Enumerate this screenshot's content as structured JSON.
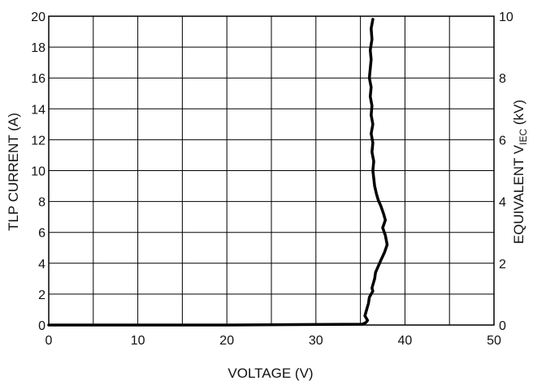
{
  "chart_data": {
    "type": "line",
    "xlabel": "VOLTAGE (V)",
    "ylabel": "TLP CURRENT (A)",
    "y2label": {
      "prefix": "EQUIVALENT V",
      "subscript": "IEC",
      "suffix": " (kV)"
    },
    "xlim": [
      0,
      50
    ],
    "ylim": [
      0,
      20
    ],
    "y2lim": [
      0,
      10
    ],
    "x_ticks": [
      0,
      10,
      20,
      30,
      40,
      50
    ],
    "y_ticks": [
      0,
      2,
      4,
      6,
      8,
      10,
      12,
      14,
      16,
      18,
      20
    ],
    "y2_ticks": [
      0,
      2,
      4,
      6,
      8,
      10
    ],
    "grid": true,
    "x_grid_step": 5,
    "y_grid_step": 2,
    "series": [
      {
        "color": "#000000",
        "x": [
          0,
          20,
          35.2,
          35.6,
          35.8,
          35.5,
          35.7,
          35.9,
          36.0,
          36.2,
          36.4,
          36.3,
          36.6,
          36.7,
          37.0,
          37.3,
          37.7,
          38.0,
          37.8,
          37.5,
          37.8,
          37.6,
          37.3,
          37.0,
          36.8,
          36.6,
          36.5,
          36.4,
          36.5,
          36.3,
          36.4,
          36.2,
          36.4,
          36.2,
          36.3,
          36.1,
          36.2,
          36.0,
          36.1,
          36.2,
          36.1,
          36.3,
          36.2,
          36.4
        ],
        "y": [
          0,
          0,
          0.05,
          0.15,
          0.3,
          0.6,
          1.0,
          1.4,
          1.8,
          2.0,
          2.2,
          2.4,
          3.0,
          3.4,
          3.8,
          4.2,
          4.7,
          5.2,
          5.8,
          6.3,
          6.8,
          7.2,
          7.7,
          8.1,
          8.5,
          9.0,
          9.5,
          10.0,
          10.6,
          11.2,
          11.8,
          12.4,
          13.0,
          13.6,
          14.2,
          14.8,
          15.4,
          16.0,
          16.6,
          17.2,
          17.8,
          18.5,
          19.2,
          19.8
        ]
      }
    ]
  }
}
